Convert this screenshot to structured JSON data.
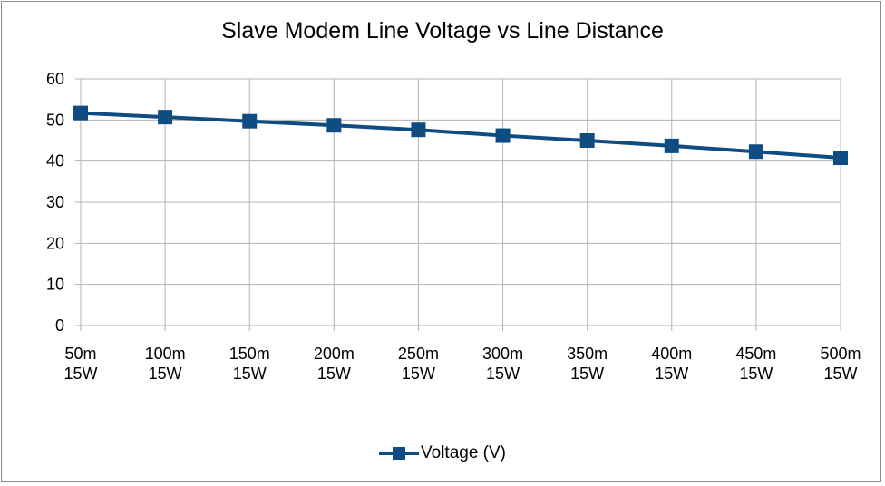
{
  "chart_data": {
    "type": "line",
    "title": "Slave Modem Line Voltage  vs Line Distance",
    "categories": [
      [
        "50m",
        "15W"
      ],
      [
        "100m",
        "15W"
      ],
      [
        "150m",
        "15W"
      ],
      [
        "200m",
        "15W"
      ],
      [
        "250m",
        "15W"
      ],
      [
        "300m",
        "15W"
      ],
      [
        "350m",
        "15W"
      ],
      [
        "400m",
        "15W"
      ],
      [
        "450m",
        "15W"
      ],
      [
        "500m",
        "15W"
      ]
    ],
    "y_ticks": [
      "0",
      "10",
      "20",
      "30",
      "40",
      "50",
      "60"
    ],
    "ylim": [
      0,
      60
    ],
    "series": [
      {
        "name": "Voltage (V)",
        "color": "#0f4c81",
        "marker": "square",
        "values": [
          51.7,
          50.7,
          49.7,
          48.7,
          47.6,
          46.2,
          45.0,
          43.7,
          42.3,
          40.8
        ]
      }
    ],
    "grid": true,
    "legend_position": "bottom"
  }
}
